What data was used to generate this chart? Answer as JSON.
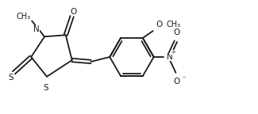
{
  "bg_color": "#ffffff",
  "line_color": "#1a1a1a",
  "lw": 1.3,
  "fs": 7.5,
  "figsize": [
    3.25,
    1.44
  ],
  "dpi": 100,
  "xlim": [
    0,
    3.25
  ],
  "ylim": [
    0,
    1.44
  ]
}
